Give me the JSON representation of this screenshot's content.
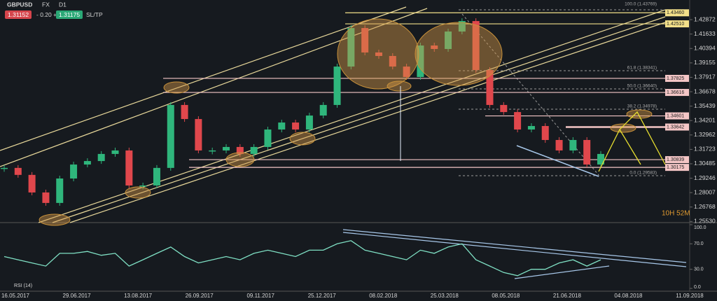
{
  "toolbar": {
    "symbol": "GBPUSD",
    "market": "FX",
    "timeframe": "D1",
    "bid": "1.31152",
    "spread": "- 0.20 +",
    "ask": "1.31175",
    "sltp": "SL/TP"
  },
  "chart_data": {
    "type": "candlestick",
    "values": [
      1.3013,
      1.2953,
      1.2802,
      1.2712,
      1.2922,
      1.3042,
      1.3072,
      1.3133,
      1.3163,
      1.2862,
      1.2862,
      1.3013,
      1.3554,
      1.3433,
      1.3163,
      1.3163,
      1.3193,
      1.3133,
      1.3193,
      1.3343,
      1.3403,
      1.3343,
      1.3463,
      1.3554,
      1.3884,
      1.4215,
      1.4005,
      1.3975,
      1.3884,
      1.3794,
      1.4065,
      1.4035,
      1.4185,
      1.4275,
      1.3854,
      1.3554,
      1.3493,
      1.3343,
      1.3373,
      1.3253,
      1.3163,
      1.3253,
      1.3042,
      1.3133
    ],
    "up_color": "#2fb67c",
    "down_color": "#e0474c",
    "ylim": [
      1.2543,
      1.4456
    ],
    "yticks": [
      1.42872,
      1.41633,
      1.40394,
      1.39155,
      1.37917,
      1.36678,
      1.35439,
      1.34201,
      1.32962,
      1.31723,
      1.30485,
      1.29246,
      1.28007,
      1.26768,
      {
        "value": 1.2553,
        "label": "1.25530"
      }
    ],
    "x_labels": [
      "16.05.2017",
      "29.06.2017",
      "13.08.2017",
      "26.09.2017",
      "09.11.2017",
      "25.12.2017",
      "08.02.2018",
      "25.03.2018",
      "08.05.2018",
      "21.06.2018",
      "04.08.2018",
      "11.09.2018"
    ],
    "levels": [
      {
        "value": 1.4346,
        "label": "1.43460",
        "color": "#f3e08a"
      },
      {
        "value": 1.4251,
        "label": "1.42510",
        "color": "#f3e08a"
      },
      {
        "value": 1.37825,
        "label": "1.37825",
        "color": "#f4c6c6"
      },
      {
        "value": 1.36616,
        "label": "1.36616",
        "color": "#f4c6c6"
      },
      {
        "value": 1.34601,
        "label": "1.34601",
        "color": "#f4c6c6"
      },
      {
        "value": 1.33642,
        "label": "1.33642",
        "color": "#f4c6c6"
      },
      {
        "value": 1.30839,
        "label": "1.30839",
        "color": "#f4c6c6"
      },
      {
        "value": 1.30175,
        "label": "1.30175",
        "color": "#f4c6c6"
      }
    ],
    "fib_labels": [
      "100.0 (1.43769)",
      "61.8 (1.38341)",
      "50.0 (1.36640)",
      "38.2 (1.34978)",
      "0.0 (1.29583)"
    ],
    "countdown": "10H 52M",
    "rsi": {
      "title": "RSI (14)",
      "color": "#7fe0c4",
      "values": [
        50,
        45,
        40,
        35,
        55,
        55,
        58,
        52,
        55,
        35,
        45,
        55,
        65,
        50,
        40,
        45,
        50,
        45,
        55,
        60,
        55,
        50,
        60,
        60,
        70,
        75,
        60,
        55,
        50,
        45,
        60,
        55,
        65,
        70,
        45,
        35,
        25,
        20,
        30,
        30,
        40,
        45,
        35,
        45
      ],
      "ylim": [
        0,
        100
      ],
      "yticks": [
        {
          "value": 100,
          "label": "100.0"
        },
        {
          "value": 70,
          "label": "70.0"
        },
        {
          "value": 30,
          "label": "30.0"
        },
        {
          "value": 0,
          "label": "0.0"
        }
      ]
    }
  }
}
